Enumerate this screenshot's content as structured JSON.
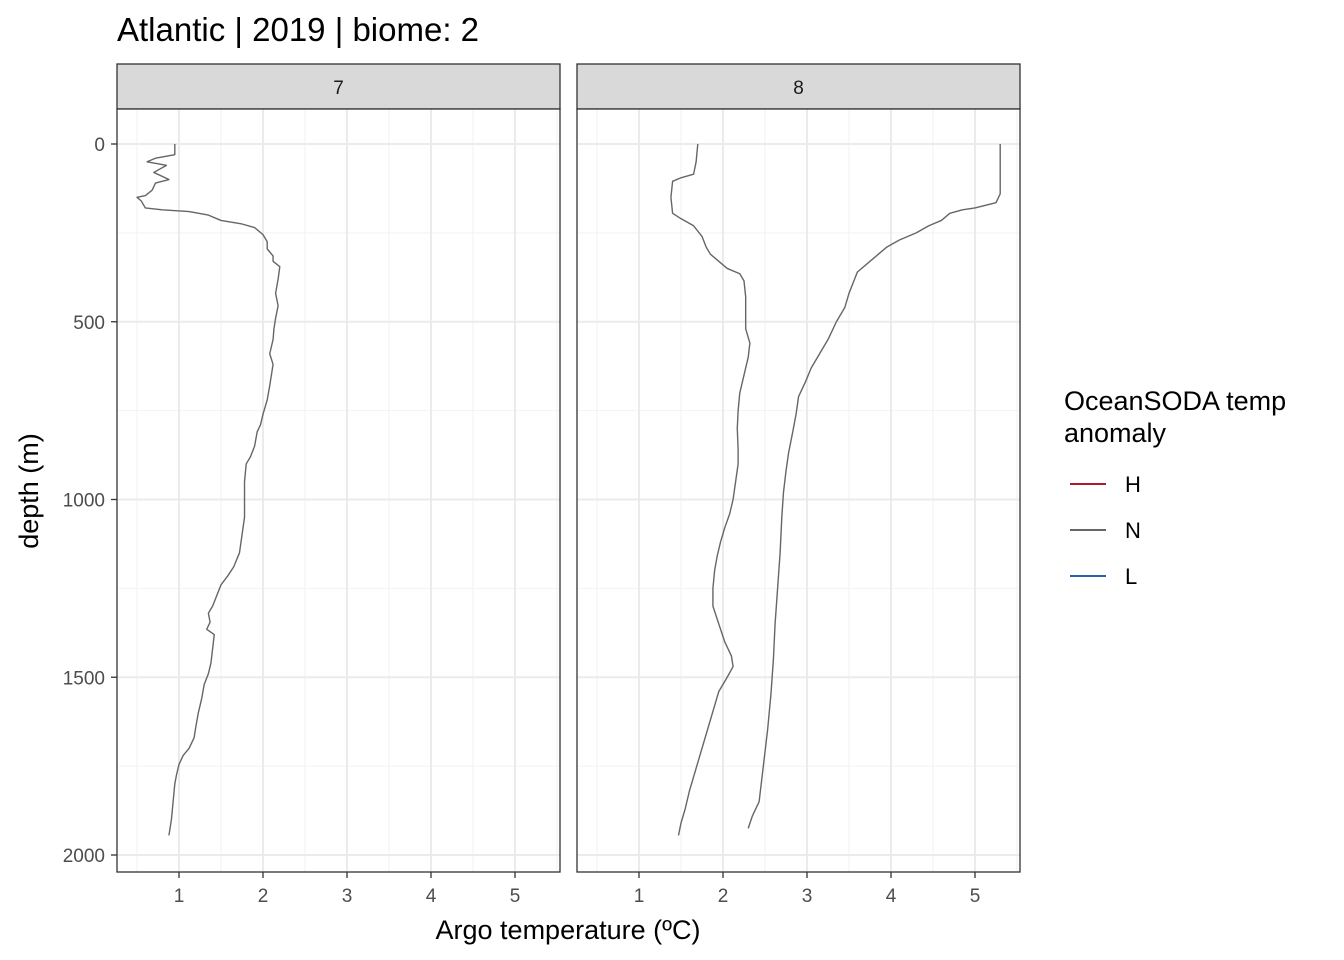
{
  "chart_data": {
    "type": "line",
    "title": "Atlantic | 2019 | biome: 2",
    "xlabel": "Argo temperature (ºC)",
    "ylabel": "depth (m)",
    "xlim": [
      0.45,
      5.5
    ],
    "ylim": [
      2045,
      -95
    ],
    "y_reversed": true,
    "x_ticks": [
      1,
      2,
      3,
      4,
      5
    ],
    "x_tick_labels": [
      "1",
      "2",
      "3",
      "4",
      "5"
    ],
    "y_ticks": [
      0,
      500,
      1000,
      1500,
      2000
    ],
    "y_tick_labels": [
      "0",
      "500",
      "1000",
      "1500",
      "2000"
    ],
    "grid": true,
    "legend": {
      "title": "OceanSODA temp anomaly",
      "title_lines": [
        "OceanSODA temp",
        "anomaly"
      ],
      "position": "right",
      "entries": [
        {
          "label": "H",
          "color": "#b2182b"
        },
        {
          "label": "N",
          "color": "#666666"
        },
        {
          "label": "L",
          "color": "#2166ac"
        }
      ]
    },
    "panels": [
      {
        "label": "7",
        "series": [
          {
            "anomaly": "N",
            "color": "#666666",
            "points": [
              [
                0.95,
                0
              ],
              [
                0.95,
                30
              ],
              [
                0.72,
                40
              ],
              [
                0.62,
                50
              ],
              [
                0.85,
                60
              ],
              [
                0.7,
                80
              ],
              [
                0.88,
                100
              ],
              [
                0.72,
                110
              ],
              [
                0.68,
                130
              ],
              [
                0.6,
                145
              ],
              [
                0.5,
                150
              ],
              [
                0.55,
                160
              ],
              [
                0.6,
                180
              ],
              [
                0.8,
                185
              ],
              [
                1.12,
                190
              ],
              [
                1.35,
                200
              ],
              [
                1.5,
                215
              ],
              [
                1.75,
                225
              ],
              [
                1.9,
                235
              ],
              [
                2.0,
                255
              ],
              [
                2.05,
                275
              ],
              [
                2.05,
                295
              ],
              [
                2.12,
                315
              ],
              [
                2.12,
                330
              ],
              [
                2.2,
                345
              ],
              [
                2.18,
                380
              ],
              [
                2.15,
                420
              ],
              [
                2.18,
                455
              ],
              [
                2.15,
                490
              ],
              [
                2.13,
                520
              ],
              [
                2.12,
                550
              ],
              [
                2.08,
                590
              ],
              [
                2.12,
                620
              ],
              [
                2.1,
                650
              ],
              [
                2.08,
                680
              ],
              [
                2.05,
                720
              ],
              [
                2.0,
                760
              ],
              [
                1.97,
                790
              ],
              [
                1.93,
                810
              ],
              [
                1.9,
                850
              ],
              [
                1.85,
                880
              ],
              [
                1.8,
                900
              ],
              [
                1.78,
                950
              ],
              [
                1.78,
                1000
              ],
              [
                1.78,
                1050
              ],
              [
                1.75,
                1100
              ],
              [
                1.72,
                1150
              ],
              [
                1.65,
                1190
              ],
              [
                1.58,
                1215
              ],
              [
                1.5,
                1240
              ],
              [
                1.45,
                1270
              ],
              [
                1.4,
                1300
              ],
              [
                1.35,
                1320
              ],
              [
                1.37,
                1345
              ],
              [
                1.33,
                1365
              ],
              [
                1.42,
                1380
              ],
              [
                1.4,
                1420
              ],
              [
                1.38,
                1460
              ],
              [
                1.35,
                1490
              ],
              [
                1.3,
                1520
              ],
              [
                1.27,
                1560
              ],
              [
                1.23,
                1600
              ],
              [
                1.2,
                1640
              ],
              [
                1.18,
                1670
              ],
              [
                1.12,
                1700
              ],
              [
                1.05,
                1720
              ],
              [
                1.0,
                1745
              ],
              [
                0.97,
                1775
              ],
              [
                0.95,
                1800
              ],
              [
                0.93,
                1850
              ],
              [
                0.91,
                1900
              ],
              [
                0.88,
                1945
              ]
            ]
          }
        ]
      },
      {
        "label": "8",
        "series": [
          {
            "anomaly": "N",
            "color": "#666666",
            "points": [
              [
                1.7,
                0
              ],
              [
                1.68,
                50
              ],
              [
                1.65,
                85
              ],
              [
                1.5,
                95
              ],
              [
                1.4,
                105
              ],
              [
                1.38,
                150
              ],
              [
                1.4,
                195
              ],
              [
                1.5,
                210
              ],
              [
                1.65,
                230
              ],
              [
                1.75,
                260
              ],
              [
                1.8,
                290
              ],
              [
                1.85,
                310
              ],
              [
                1.95,
                330
              ],
              [
                2.05,
                350
              ],
              [
                2.2,
                365
              ],
              [
                2.25,
                385
              ],
              [
                2.27,
                430
              ],
              [
                2.27,
                480
              ],
              [
                2.27,
                520
              ],
              [
                2.32,
                560
              ],
              [
                2.3,
                600
              ],
              [
                2.25,
                650
              ],
              [
                2.2,
                700
              ],
              [
                2.18,
                750
              ],
              [
                2.17,
                800
              ],
              [
                2.18,
                860
              ],
              [
                2.18,
                900
              ],
              [
                2.15,
                950
              ],
              [
                2.12,
                1000
              ],
              [
                2.08,
                1040
              ],
              [
                2.02,
                1080
              ],
              [
                1.97,
                1120
              ],
              [
                1.93,
                1160
              ],
              [
                1.9,
                1200
              ],
              [
                1.88,
                1250
              ],
              [
                1.88,
                1300
              ],
              [
                1.95,
                1350
              ],
              [
                2.02,
                1400
              ],
              [
                2.1,
                1440
              ],
              [
                2.12,
                1470
              ],
              [
                2.05,
                1500
              ],
              [
                1.95,
                1540
              ],
              [
                1.9,
                1580
              ],
              [
                1.85,
                1620
              ],
              [
                1.8,
                1660
              ],
              [
                1.75,
                1700
              ],
              [
                1.7,
                1740
              ],
              [
                1.65,
                1780
              ],
              [
                1.6,
                1820
              ],
              [
                1.55,
                1870
              ],
              [
                1.5,
                1910
              ],
              [
                1.47,
                1945
              ]
            ]
          },
          {
            "anomaly": "N",
            "color": "#666666",
            "points": [
              [
                5.3,
                0
              ],
              [
                5.3,
                140
              ],
              [
                5.25,
                165
              ],
              [
                5.0,
                180
              ],
              [
                4.85,
                185
              ],
              [
                4.7,
                195
              ],
              [
                4.6,
                215
              ],
              [
                4.45,
                230
              ],
              [
                4.3,
                250
              ],
              [
                4.1,
                270
              ],
              [
                3.95,
                290
              ],
              [
                3.85,
                310
              ],
              [
                3.75,
                330
              ],
              [
                3.6,
                360
              ],
              [
                3.55,
                390
              ],
              [
                3.5,
                420
              ],
              [
                3.45,
                460
              ],
              [
                3.35,
                500
              ],
              [
                3.25,
                550
              ],
              [
                3.15,
                590
              ],
              [
                3.05,
                630
              ],
              [
                2.98,
                670
              ],
              [
                2.9,
                710
              ],
              [
                2.87,
                760
              ],
              [
                2.83,
                810
              ],
              [
                2.78,
                870
              ],
              [
                2.75,
                920
              ],
              [
                2.72,
                980
              ],
              [
                2.7,
                1050
              ],
              [
                2.68,
                1150
              ],
              [
                2.65,
                1250
              ],
              [
                2.62,
                1350
              ],
              [
                2.6,
                1450
              ],
              [
                2.57,
                1550
              ],
              [
                2.53,
                1650
              ],
              [
                2.48,
                1750
              ],
              [
                2.43,
                1850
              ],
              [
                2.35,
                1890
              ],
              [
                2.3,
                1925
              ]
            ]
          }
        ]
      }
    ]
  }
}
